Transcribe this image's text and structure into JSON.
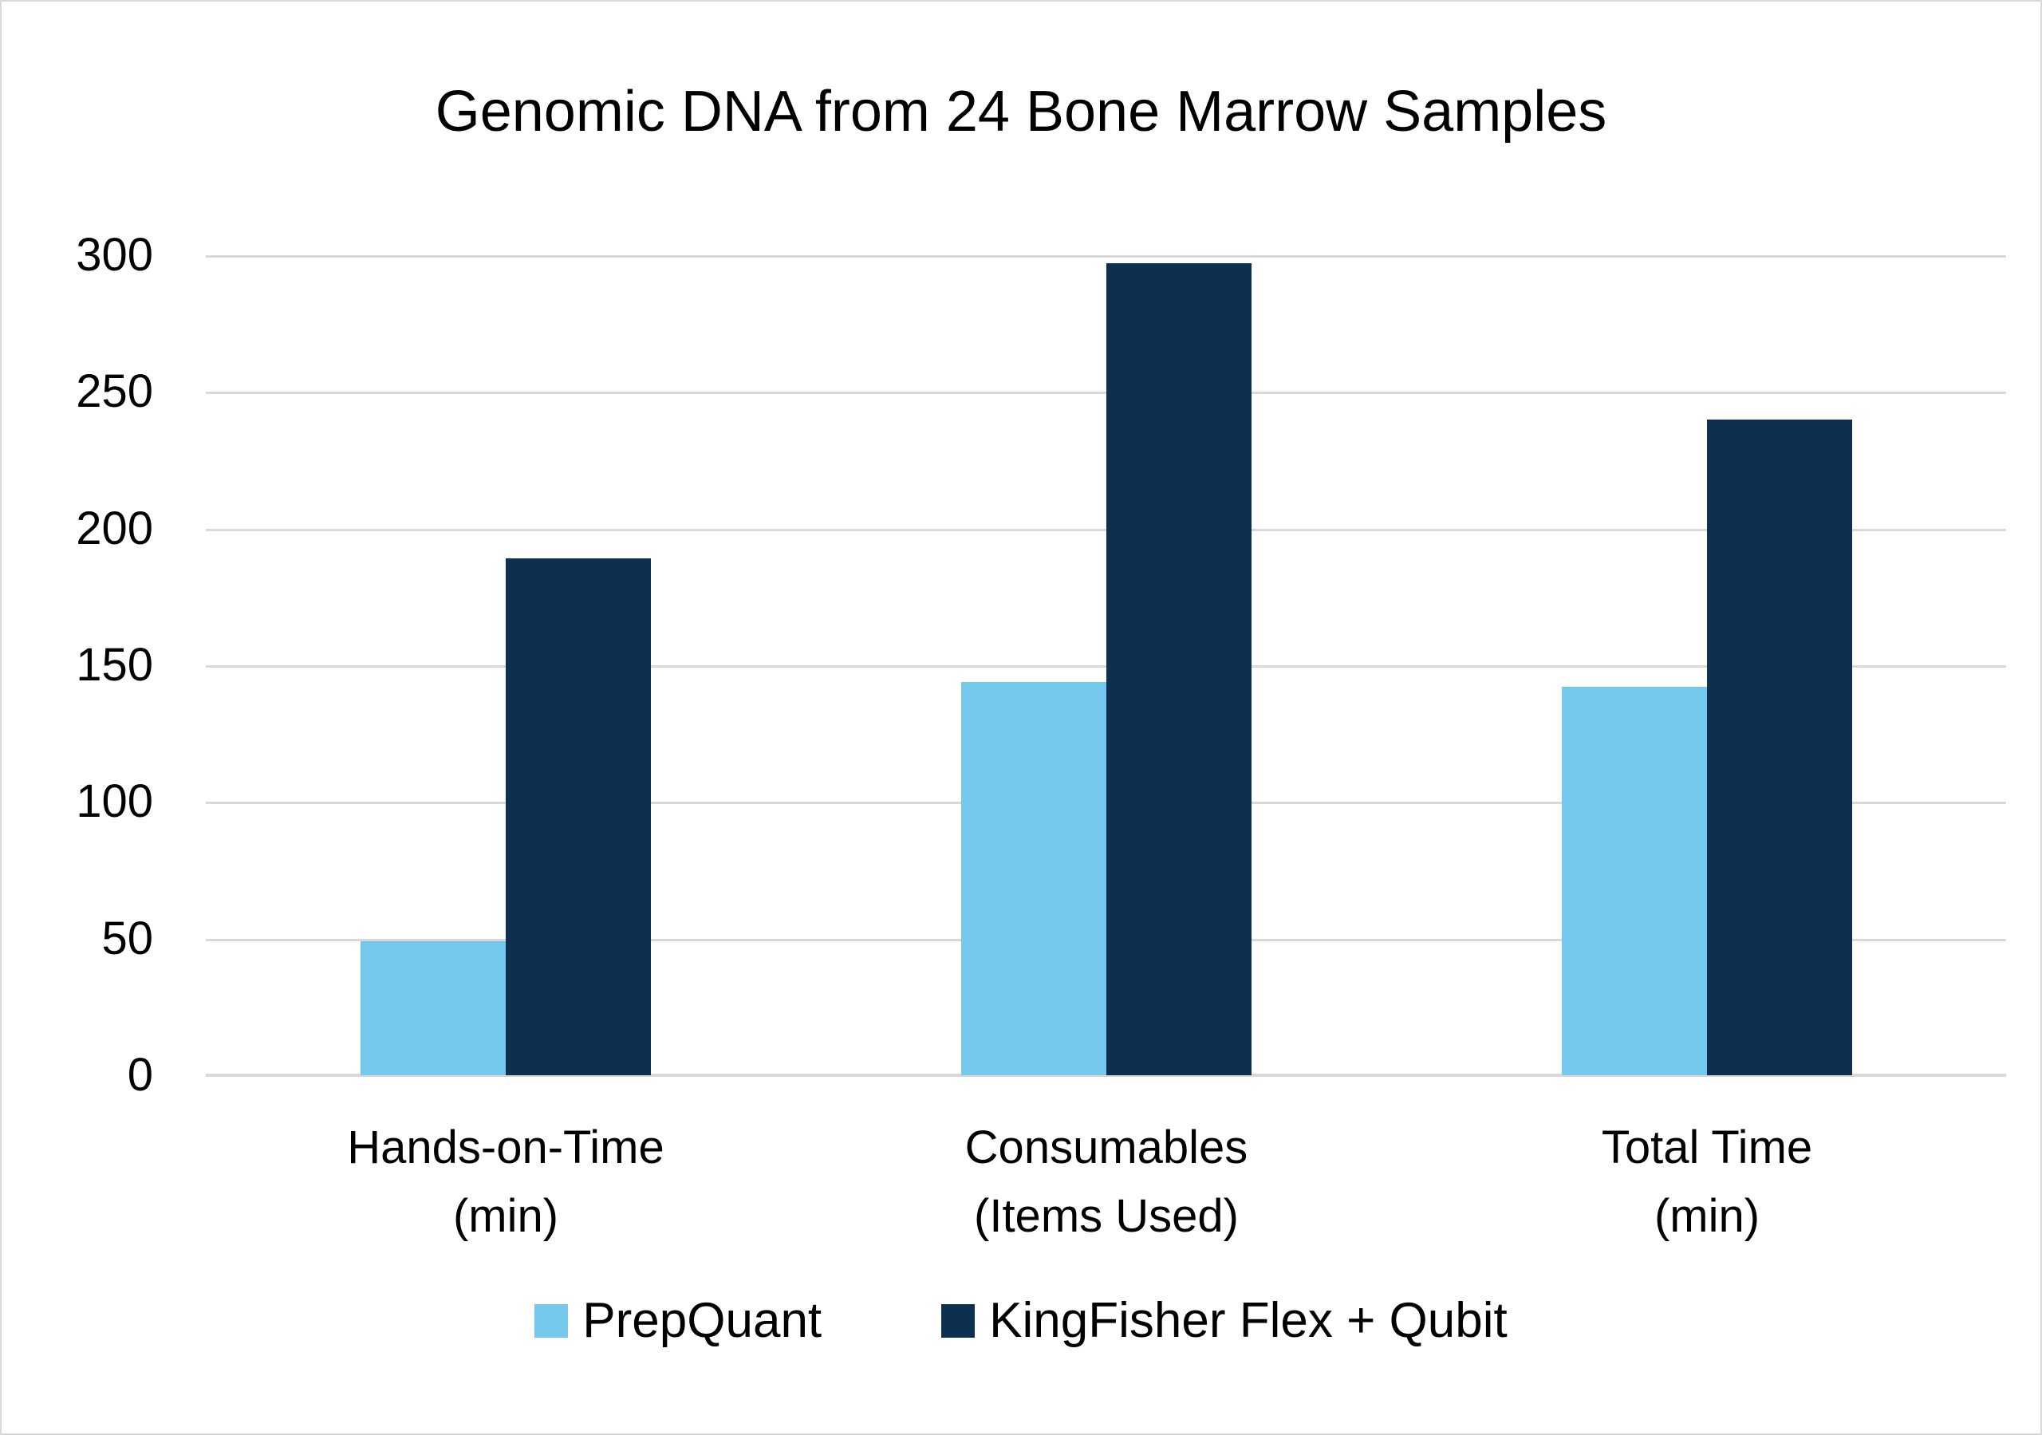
{
  "title": "Genomic DNA from 24 Bone Marrow Samples",
  "colors": {
    "prepquant": "#74c9ed",
    "kingfisher": "#0d2f50",
    "gridline": "#d9d9d9"
  },
  "y_axis": {
    "ticks": [
      "300",
      "250",
      "200",
      "150",
      "100",
      "50",
      "0"
    ]
  },
  "categories": [
    {
      "line1": "Hands-on-Time",
      "line2": "(min)"
    },
    {
      "line1": "Consumables",
      "line2": "(Items Used)"
    },
    {
      "line1": "Total Time",
      "line2": "(min)"
    }
  ],
  "legend": [
    {
      "label": "PrepQuant"
    },
    {
      "label": "KingFisher Flex + Qubit"
    }
  ],
  "chart_data": {
    "type": "bar",
    "title": "Genomic DNA from 24 Bone Marrow Samples",
    "categories": [
      "Hands-on-Time (min)",
      "Consumables (Items Used)",
      "Total Time (min)"
    ],
    "series": [
      {
        "name": "PrepQuant",
        "color": "#74c9ed",
        "values": [
          49,
          144,
          142
        ]
      },
      {
        "name": "KingFisher Flex + Qubit",
        "color": "#0d2f50",
        "values": [
          189,
          297,
          240
        ]
      }
    ],
    "xlabel": "",
    "ylabel": "",
    "ylim": [
      0,
      300
    ],
    "yticks": [
      0,
      50,
      100,
      150,
      200,
      250,
      300
    ],
    "grid": true,
    "legend_position": "bottom"
  }
}
